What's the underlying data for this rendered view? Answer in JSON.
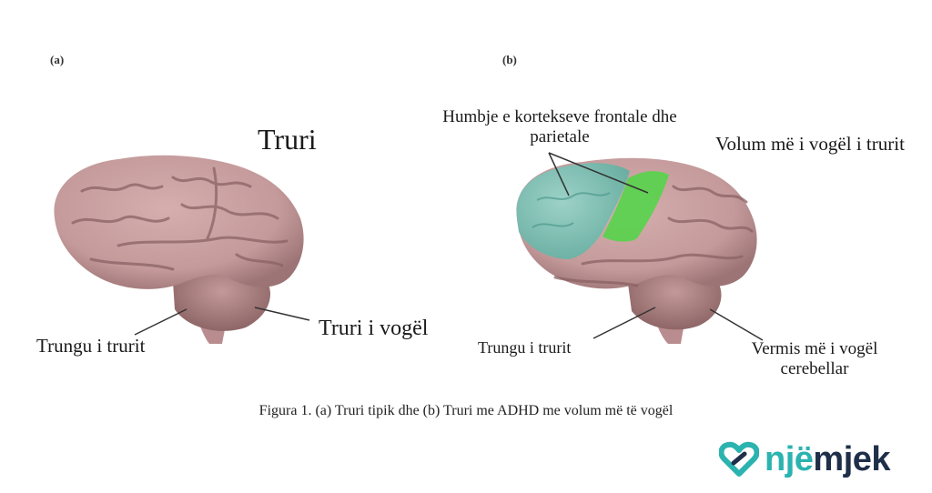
{
  "panels": {
    "a": {
      "tag": "(a)",
      "title": "Truri",
      "labels": {
        "brainstem": "Trungu i trurit",
        "cerebellum": "Truri i vogël"
      }
    },
    "b": {
      "tag": "(b)",
      "labels": {
        "cortex_loss": "Humbje e kortekseve frontale dhe parietale",
        "smaller_volume": "Volum më i vogël i trurit",
        "brainstem": "Trungu i trurit",
        "vermis": "Vermis më i vogël cerebellar"
      }
    }
  },
  "caption": "Figura 1. (a) Truri tipik dhe (b) Truri me ADHD me volum më të vogël",
  "logo": {
    "part1": "një",
    "part2": "mjek",
    "icon": "heart-link-icon"
  },
  "colors": {
    "brain": "#c49a9b",
    "frontal_highlight": "#7cc2b6",
    "parietal_highlight": "#55d44a",
    "brand_teal": "#2bb3b0",
    "brand_navy": "#1f2f4a"
  }
}
